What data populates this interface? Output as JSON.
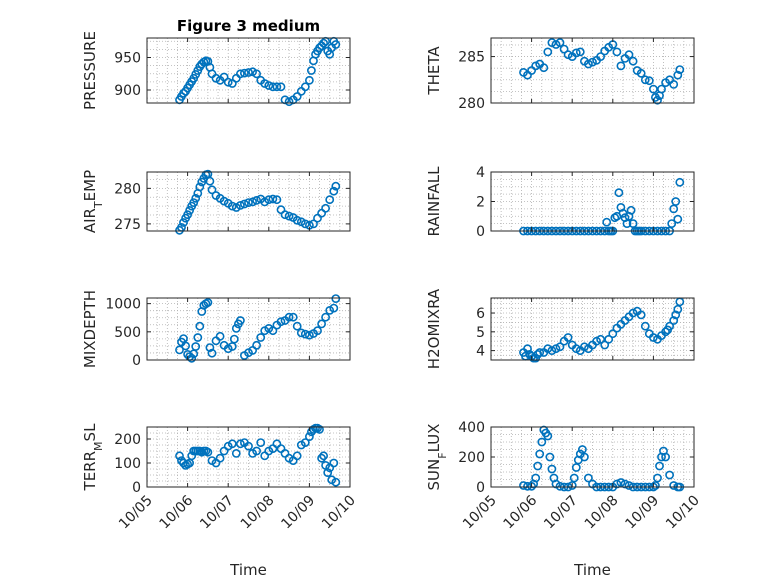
{
  "chart_data": [
    {
      "type": "scatter",
      "id": "pressure",
      "title": "Figure 3 medium",
      "ylabel": "PRESSURE",
      "ylim": [
        880,
        980
      ],
      "yticks": [
        900,
        950
      ],
      "xlim": [
        5,
        10
      ],
      "series": [
        {
          "x": [
            5.8,
            5.85,
            5.9,
            5.95,
            6.0,
            6.05,
            6.1,
            6.15,
            6.2,
            6.25,
            6.3,
            6.35,
            6.4,
            6.45,
            6.5,
            6.55,
            6.6,
            6.7,
            6.8,
            6.9,
            7.0,
            7.1,
            7.2,
            7.3,
            7.4,
            7.5,
            7.6,
            7.7,
            7.8,
            7.9,
            8.0,
            8.1,
            8.2,
            8.3,
            8.4,
            8.5,
            8.6,
            8.7,
            8.8,
            8.9,
            9.0,
            9.05,
            9.1,
            9.15,
            9.2,
            9.25,
            9.3,
            9.35,
            9.4,
            9.45,
            9.5,
            9.55,
            9.6,
            9.65
          ],
          "y": [
            885,
            890,
            895,
            898,
            903,
            908,
            913,
            918,
            924,
            930,
            936,
            940,
            943,
            945,
            944,
            935,
            925,
            918,
            915,
            920,
            912,
            910,
            918,
            925,
            926,
            927,
            928,
            925,
            915,
            910,
            907,
            905,
            905,
            905,
            885,
            882,
            885,
            890,
            898,
            905,
            915,
            930,
            945,
            955,
            960,
            965,
            968,
            972,
            975,
            960,
            955,
            965,
            975,
            970
          ]
        }
      ]
    },
    {
      "type": "scatter",
      "id": "theta",
      "title": "",
      "ylabel": "THETA",
      "ylim": [
        280,
        287
      ],
      "yticks": [
        280,
        285
      ],
      "xlim": [
        5,
        10
      ],
      "series": [
        {
          "x": [
            5.8,
            5.9,
            6.0,
            6.1,
            6.2,
            6.3,
            6.4,
            6.5,
            6.6,
            6.7,
            6.8,
            6.9,
            7.0,
            7.1,
            7.2,
            7.3,
            7.4,
            7.5,
            7.6,
            7.7,
            7.8,
            7.9,
            8.0,
            8.1,
            8.2,
            8.3,
            8.4,
            8.5,
            8.6,
            8.7,
            8.8,
            8.9,
            9.0,
            9.05,
            9.1,
            9.15,
            9.2,
            9.3,
            9.4,
            9.5,
            9.6,
            9.65
          ],
          "y": [
            283.3,
            283.0,
            283.5,
            284.0,
            284.2,
            283.8,
            285.5,
            286.5,
            286.3,
            286.5,
            285.8,
            285.2,
            285.0,
            285.4,
            285.5,
            284.5,
            284.2,
            284.4,
            284.6,
            285.0,
            285.6,
            286.0,
            286.3,
            285.5,
            284.0,
            284.8,
            285.2,
            284.5,
            283.5,
            283.2,
            282.5,
            282.4,
            281.5,
            280.6,
            280.3,
            280.8,
            281.5,
            282.2,
            282.5,
            282.0,
            283.0,
            283.6
          ]
        }
      ]
    },
    {
      "type": "scatter",
      "id": "airtemp",
      "title": "",
      "ylabel": "AIR_TEMP",
      "ylim": [
        274,
        282.3
      ],
      "yticks": [
        275,
        280
      ],
      "xlim": [
        5,
        10
      ],
      "series": [
        {
          "x": [
            5.8,
            5.85,
            5.9,
            5.95,
            6.0,
            6.05,
            6.1,
            6.15,
            6.2,
            6.25,
            6.3,
            6.35,
            6.4,
            6.45,
            6.5,
            6.55,
            6.6,
            6.7,
            6.8,
            6.9,
            7.0,
            7.1,
            7.2,
            7.3,
            7.4,
            7.5,
            7.6,
            7.7,
            7.8,
            7.9,
            8.0,
            8.1,
            8.2,
            8.3,
            8.4,
            8.5,
            8.6,
            8.7,
            8.8,
            8.9,
            9.0,
            9.1,
            9.2,
            9.3,
            9.4,
            9.5,
            9.6,
            9.65
          ],
          "y": [
            274.1,
            274.5,
            275.2,
            275.8,
            276.3,
            276.9,
            277.5,
            278.0,
            278.6,
            279.3,
            280.2,
            280.9,
            281.4,
            281.9,
            282.0,
            281.0,
            279.8,
            279.0,
            278.6,
            278.2,
            277.9,
            277.5,
            277.3,
            277.6,
            277.8,
            278.0,
            278.1,
            278.3,
            278.5,
            278.1,
            278.4,
            278.5,
            278.4,
            277.0,
            276.3,
            276.1,
            275.9,
            275.5,
            275.3,
            275.0,
            274.8,
            275.0,
            275.8,
            276.5,
            277.2,
            278.4,
            279.6,
            280.3
          ]
        }
      ]
    },
    {
      "type": "scatter",
      "id": "rainfall",
      "title": "",
      "ylabel": "RAINFALL",
      "ylim": [
        0,
        4
      ],
      "yticks": [
        0,
        2,
        4
      ],
      "xlim": [
        5,
        10
      ],
      "series": [
        {
          "x": [
            5.8,
            5.9,
            6.0,
            6.1,
            6.2,
            6.3,
            6.4,
            6.5,
            6.6,
            6.7,
            6.8,
            6.9,
            7.0,
            7.1,
            7.2,
            7.3,
            7.4,
            7.5,
            7.6,
            7.7,
            7.8,
            7.85,
            7.9,
            7.95,
            8.0,
            8.05,
            8.1,
            8.15,
            8.2,
            8.25,
            8.3,
            8.35,
            8.4,
            8.45,
            8.5,
            8.55,
            8.6,
            8.65,
            8.7,
            8.8,
            8.9,
            9.0,
            9.1,
            9.2,
            9.3,
            9.4,
            9.45,
            9.5,
            9.55,
            9.6,
            9.65
          ],
          "y": [
            0,
            0,
            0,
            0,
            0,
            0,
            0,
            0,
            0,
            0,
            0,
            0,
            0,
            0,
            0,
            0,
            0,
            0,
            0,
            0,
            0,
            0.6,
            0,
            0,
            0,
            0.9,
            1.0,
            2.6,
            1.6,
            1.2,
            0.9,
            0.5,
            1.0,
            1.4,
            0.5,
            0,
            0,
            0,
            0,
            0,
            0,
            0,
            0,
            0,
            0,
            0,
            0.5,
            1.5,
            2.0,
            0.8,
            3.3
          ]
        }
      ]
    },
    {
      "type": "scatter",
      "id": "mixdepth",
      "title": "",
      "ylabel": "MIXDEPTH",
      "ylim": [
        0,
        1100
      ],
      "yticks": [
        0,
        500,
        1000
      ],
      "xlim": [
        5,
        10
      ],
      "series": [
        {
          "x": [
            5.8,
            5.85,
            5.9,
            5.95,
            6.0,
            6.05,
            6.1,
            6.15,
            6.2,
            6.25,
            6.3,
            6.35,
            6.4,
            6.45,
            6.5,
            6.55,
            6.6,
            6.7,
            6.8,
            6.9,
            7.0,
            7.1,
            7.15,
            7.2,
            7.25,
            7.3,
            7.4,
            7.5,
            7.6,
            7.7,
            7.8,
            7.9,
            8.0,
            8.1,
            8.2,
            8.3,
            8.4,
            8.5,
            8.6,
            8.7,
            8.8,
            8.9,
            9.0,
            9.1,
            9.2,
            9.3,
            9.4,
            9.5,
            9.6,
            9.65
          ],
          "y": [
            180,
            320,
            380,
            250,
            100,
            60,
            30,
            110,
            240,
            400,
            600,
            860,
            970,
            1000,
            1020,
            220,
            120,
            340,
            420,
            260,
            200,
            240,
            370,
            560,
            640,
            700,
            80,
            130,
            170,
            260,
            400,
            520,
            560,
            520,
            620,
            680,
            700,
            760,
            760,
            600,
            480,
            460,
            440,
            470,
            520,
            640,
            760,
            880,
            920,
            1090
          ]
        }
      ]
    },
    {
      "type": "scatter",
      "id": "h2omixra",
      "title": "",
      "ylabel": "H2OMIXRA",
      "ylim": [
        3.5,
        6.8
      ],
      "yticks": [
        4,
        5,
        6
      ],
      "xlim": [
        5,
        10
      ],
      "series": [
        {
          "x": [
            5.8,
            5.85,
            5.9,
            5.95,
            6.0,
            6.05,
            6.1,
            6.15,
            6.2,
            6.3,
            6.4,
            6.5,
            6.6,
            6.7,
            6.8,
            6.9,
            7.0,
            7.1,
            7.2,
            7.3,
            7.4,
            7.5,
            7.6,
            7.7,
            7.8,
            7.9,
            8.0,
            8.1,
            8.2,
            8.3,
            8.4,
            8.5,
            8.6,
            8.7,
            8.8,
            8.9,
            9.0,
            9.1,
            9.2,
            9.3,
            9.35,
            9.4,
            9.5,
            9.55,
            9.6,
            9.65
          ],
          "y": [
            3.9,
            3.7,
            4.1,
            3.8,
            3.7,
            3.6,
            3.6,
            3.8,
            3.9,
            3.9,
            4.1,
            4.0,
            4.1,
            4.2,
            4.5,
            4.7,
            4.3,
            4.1,
            4.0,
            4.2,
            4.1,
            4.3,
            4.5,
            4.6,
            4.3,
            4.6,
            4.9,
            5.2,
            5.4,
            5.6,
            5.8,
            6.0,
            6.1,
            5.9,
            5.3,
            4.9,
            4.7,
            4.6,
            4.8,
            5.0,
            5.1,
            5.3,
            5.6,
            5.9,
            6.2,
            6.6
          ]
        }
      ]
    },
    {
      "type": "scatter",
      "id": "terrmsl",
      "title": "",
      "ylabel": "TERR_MSL",
      "ylim": [
        0,
        250
      ],
      "yticks": [
        0,
        100,
        200
      ],
      "xlim": [
        5,
        10
      ],
      "series": [
        {
          "x": [
            5.8,
            5.85,
            5.9,
            5.95,
            6.0,
            6.05,
            6.1,
            6.15,
            6.2,
            6.25,
            6.3,
            6.35,
            6.4,
            6.45,
            6.5,
            6.6,
            6.7,
            6.8,
            6.9,
            7.0,
            7.1,
            7.2,
            7.3,
            7.4,
            7.5,
            7.6,
            7.7,
            7.8,
            7.9,
            8.0,
            8.1,
            8.2,
            8.3,
            8.4,
            8.5,
            8.6,
            8.7,
            8.8,
            8.9,
            9.0,
            9.05,
            9.1,
            9.15,
            9.2,
            9.25,
            9.3,
            9.35,
            9.4,
            9.45,
            9.5,
            9.55,
            9.6,
            9.65
          ],
          "y": [
            130,
            110,
            100,
            90,
            95,
            100,
            130,
            150,
            150,
            150,
            150,
            145,
            150,
            150,
            145,
            110,
            100,
            120,
            150,
            170,
            180,
            140,
            180,
            185,
            170,
            140,
            150,
            185,
            130,
            150,
            160,
            180,
            160,
            140,
            120,
            110,
            130,
            175,
            185,
            210,
            230,
            240,
            245,
            245,
            240,
            120,
            130,
            90,
            60,
            80,
            30,
            100,
            20
          ]
        }
      ]
    },
    {
      "type": "scatter",
      "id": "sunflux",
      "title": "",
      "ylabel": "SUN_FLUX",
      "ylim": [
        0,
        400
      ],
      "yticks": [
        0,
        200,
        400
      ],
      "xlim": [
        5,
        10
      ],
      "series": [
        {
          "x": [
            5.8,
            5.9,
            6.0,
            6.05,
            6.1,
            6.15,
            6.2,
            6.25,
            6.3,
            6.35,
            6.4,
            6.45,
            6.5,
            6.55,
            6.6,
            6.7,
            6.8,
            6.9,
            7.0,
            7.05,
            7.1,
            7.15,
            7.2,
            7.25,
            7.3,
            7.4,
            7.5,
            7.6,
            7.7,
            7.8,
            7.9,
            8.0,
            8.1,
            8.2,
            8.3,
            8.4,
            8.5,
            8.6,
            8.7,
            8.8,
            8.9,
            9.0,
            9.05,
            9.1,
            9.15,
            9.2,
            9.25,
            9.3,
            9.4,
            9.5,
            9.6,
            9.65
          ],
          "y": [
            10,
            5,
            5,
            20,
            60,
            140,
            220,
            300,
            380,
            360,
            340,
            200,
            120,
            60,
            20,
            5,
            0,
            0,
            10,
            60,
            130,
            180,
            220,
            250,
            200,
            60,
            20,
            0,
            0,
            0,
            0,
            0,
            20,
            30,
            20,
            10,
            0,
            0,
            0,
            0,
            0,
            0,
            10,
            60,
            140,
            200,
            240,
            200,
            80,
            10,
            0,
            0
          ]
        }
      ]
    }
  ],
  "x_axis": {
    "label": "Time",
    "tick_values": [
      5,
      6,
      7,
      8,
      9,
      10
    ],
    "tick_labels": [
      "10/05",
      "10/06",
      "10/07",
      "10/08",
      "10/09",
      "10/10"
    ]
  },
  "colors": {
    "marker": "#0072BD",
    "axis": "#262626"
  }
}
